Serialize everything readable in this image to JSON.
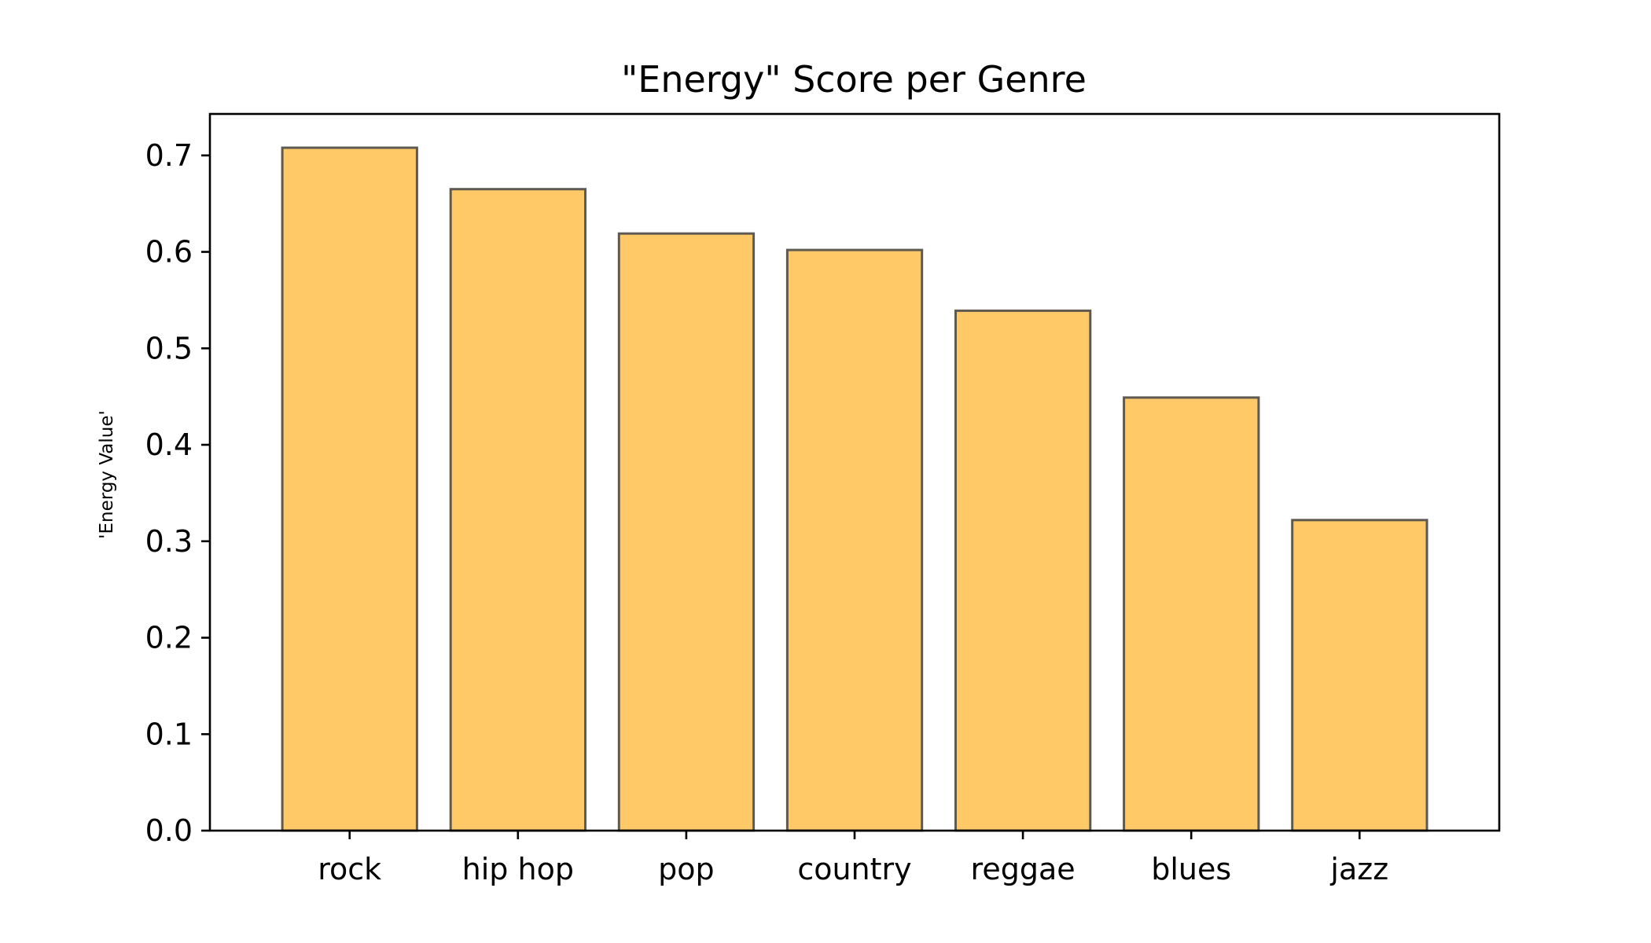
{
  "chart_data": {
    "type": "bar",
    "title": "\"Energy\" Score per Genre",
    "xlabel": "",
    "ylabel": "'Energy Value'",
    "categories": [
      "rock",
      "hip hop",
      "pop",
      "country",
      "reggae",
      "blues",
      "jazz"
    ],
    "values": [
      0.708,
      0.665,
      0.619,
      0.602,
      0.539,
      0.449,
      0.322
    ],
    "ylim": [
      0,
      0.743
    ],
    "yticks": [
      0.0,
      0.1,
      0.2,
      0.3,
      0.4,
      0.5,
      0.6,
      0.7
    ],
    "ytick_labels": [
      "0.0",
      "0.1",
      "0.2",
      "0.3",
      "0.4",
      "0.5",
      "0.6",
      "0.7"
    ],
    "grid": false,
    "legend": false,
    "colors": {
      "bar_fill": "#fec966",
      "bar_edge": "#5e5a51",
      "axis": "#000000",
      "background": "#ffffff"
    }
  }
}
